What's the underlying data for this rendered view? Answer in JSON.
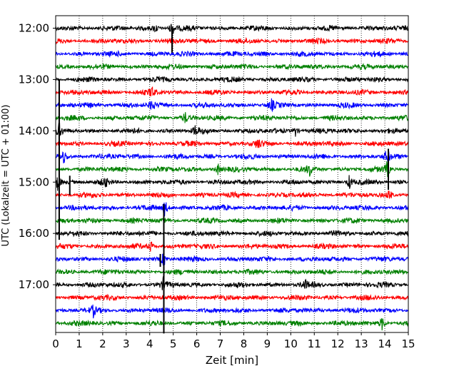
{
  "chart_data": {
    "type": "line",
    "title": "",
    "xlabel": "Zeit  [min]",
    "ylabel": "UTC (Lokalzeit = UTC + 01:00)",
    "xlim": [
      0,
      15
    ],
    "xticks": [
      0,
      1,
      2,
      3,
      4,
      5,
      6,
      7,
      8,
      9,
      10,
      11,
      12,
      13,
      14,
      15
    ],
    "xtick_labels": [
      "0",
      "1",
      "2",
      "3",
      "4",
      "5",
      "6",
      "7",
      "8",
      "9",
      "10",
      "11",
      "12",
      "13",
      "14",
      "15"
    ],
    "row_start": "12:00",
    "row_interval_minutes": 15,
    "row_count": 24,
    "ytick_labels": [
      "12:00",
      "13:00",
      "14:00",
      "15:00",
      "16:00",
      "17:00"
    ],
    "color_cycle": [
      "#000000",
      "#ff0000",
      "#0000ff",
      "#008000"
    ],
    "grid": "vertical dotted lines at each minute",
    "events": [
      {
        "row": 0,
        "x": 4.95,
        "amp": 0.7
      },
      {
        "row": 0,
        "x": 4.25,
        "amp": 0.4
      },
      {
        "row": 5,
        "x": 4.1,
        "amp": 0.5
      },
      {
        "row": 6,
        "x": 4.1,
        "amp": 0.5
      },
      {
        "row": 6,
        "x": 9.2,
        "amp": 0.4
      },
      {
        "row": 7,
        "x": 5.5,
        "amp": 0.4
      },
      {
        "row": 8,
        "x": 0.15,
        "amp": 0.5
      },
      {
        "row": 8,
        "x": 5.95,
        "amp": 0.45
      },
      {
        "row": 8,
        "x": 10.2,
        "amp": 0.4
      },
      {
        "row": 9,
        "x": 8.6,
        "amp": 0.4
      },
      {
        "row": 10,
        "x": 0.35,
        "amp": 0.5
      },
      {
        "row": 10,
        "x": 14.1,
        "amp": 0.6
      },
      {
        "row": 11,
        "x": 6.9,
        "amp": 0.45
      },
      {
        "row": 11,
        "x": 10.8,
        "amp": 0.45
      },
      {
        "row": 11,
        "x": 14.1,
        "amp": 0.6
      },
      {
        "row": 12,
        "x": 0.1,
        "amp": 0.8
      },
      {
        "row": 12,
        "x": 2.1,
        "amp": 0.35
      },
      {
        "row": 12,
        "x": 12.5,
        "amp": 0.6
      },
      {
        "row": 13,
        "x": 14.2,
        "amp": 0.45
      },
      {
        "row": 14,
        "x": 4.65,
        "amp": 0.7
      },
      {
        "row": 17,
        "x": 4.05,
        "amp": 0.45
      },
      {
        "row": 18,
        "x": 4.6,
        "amp": 0.6
      },
      {
        "row": 20,
        "x": 4.6,
        "amp": 0.6
      },
      {
        "row": 20,
        "x": 10.6,
        "amp": 0.35
      },
      {
        "row": 22,
        "x": 1.6,
        "amp": 0.4
      },
      {
        "row": 23,
        "x": 13.9,
        "amp": 0.6
      }
    ],
    "tall_spikes": [
      {
        "x": 4.95,
        "from_row": 0,
        "to_row": 1.9
      },
      {
        "x": 0.15,
        "from_row": 4,
        "to_row": 16.5
      },
      {
        "x": 0.6,
        "from_row": 11.5,
        "to_row": 13
      },
      {
        "x": 4.6,
        "from_row": 13.7,
        "to_row": 23.8
      },
      {
        "x": 4.45,
        "from_row": 17.6,
        "to_row": 18.6
      },
      {
        "x": 14.15,
        "from_row": 9.4,
        "to_row": 12.6
      }
    ]
  }
}
